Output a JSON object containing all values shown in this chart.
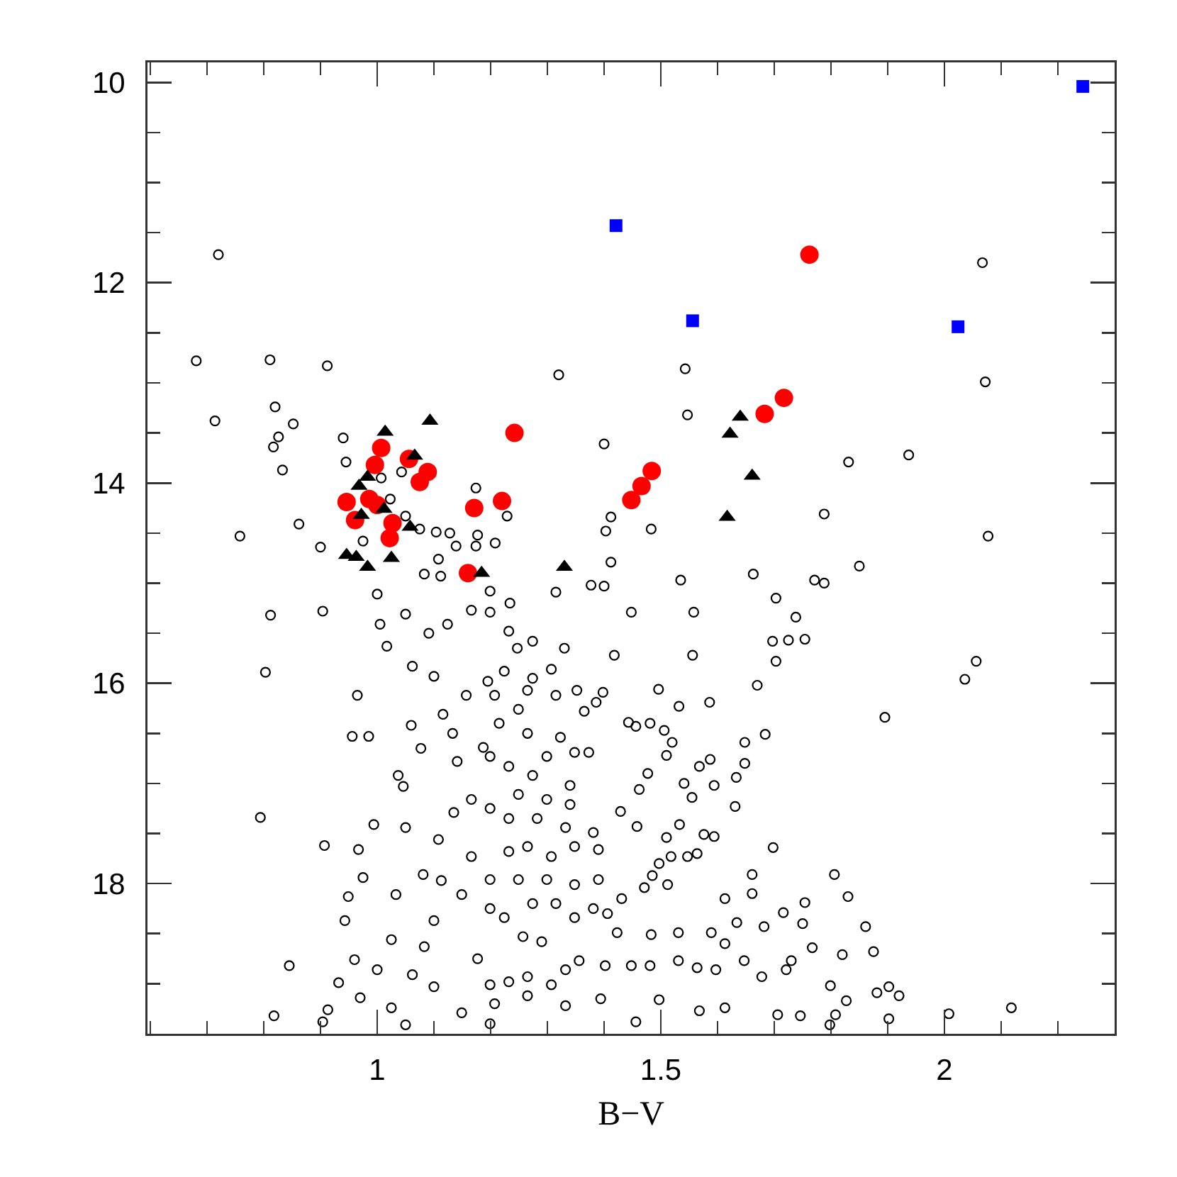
{
  "chart_data": {
    "type": "scatter",
    "xlabel": "B−V",
    "xlim": [
      0.595,
      2.3
    ],
    "ylim": [
      19.5,
      9.8
    ],
    "xticks": [
      {
        "value": 0.6,
        "label": null
      },
      {
        "value": 0.7,
        "label": null
      },
      {
        "value": 0.8,
        "label": null
      },
      {
        "value": 0.9,
        "label": null
      },
      1,
      {
        "value": 1.1,
        "label": null
      },
      {
        "value": 1.2,
        "label": null
      },
      {
        "value": 1.3,
        "label": null
      },
      {
        "value": 1.4,
        "label": null
      },
      1.5,
      {
        "value": 1.6,
        "label": null
      },
      {
        "value": 1.7,
        "label": null
      },
      {
        "value": 1.8,
        "label": null
      },
      {
        "value": 1.9,
        "label": null
      },
      2,
      {
        "value": 2.1,
        "label": null
      },
      {
        "value": 2.2,
        "label": null
      }
    ],
    "yticks": [
      10,
      {
        "value": 10.5,
        "label": null
      },
      {
        "value": 11,
        "label": null
      },
      {
        "value": 11.5,
        "label": null
      },
      12,
      {
        "value": 12.5,
        "label": null
      },
      {
        "value": 13,
        "label": null
      },
      {
        "value": 13.5,
        "label": null
      },
      14,
      {
        "value": 14.5,
        "label": null
      },
      {
        "value": 15,
        "label": null
      },
      {
        "value": 15.5,
        "label": null
      },
      16,
      {
        "value": 16.5,
        "label": null
      },
      {
        "value": 17,
        "label": null
      },
      {
        "value": 17.5,
        "label": null
      },
      18,
      {
        "value": 18.5,
        "label": null
      },
      {
        "value": 19,
        "label": null
      }
    ],
    "series": [
      {
        "marker": "circle-open",
        "color": "#000000",
        "x": [
          0.72,
          0.681,
          0.811,
          0.912,
          0.82,
          0.714,
          0.852,
          0.826,
          0.817,
          0.94,
          0.945,
          0.833,
          1.007,
          1.043,
          1.023,
          1.174,
          0.862,
          0.758,
          0.9,
          1.104,
          1.128,
          1.177,
          1.174,
          1.139,
          1.05,
          1.075,
          0.975,
          1.108,
          1.32,
          1.543,
          1.547,
          1.4,
          1.229,
          1.412,
          1.403,
          1.483,
          1.208,
          1.412,
          2.067,
          2.072,
          1.831,
          1.937,
          1.788,
          2.077,
          1.85,
          1.771,
          1.788,
          1.754,
          2.056,
          2.036,
          1.895,
          1.806,
          1.83,
          1.861,
          1.875,
          1.82,
          1.767,
          1.799,
          1.902,
          1.881,
          1.92,
          1.827,
          2.008,
          2.118,
          1.902,
          1.808,
          1.798,
          0.812,
          0.904,
          0.803,
          0.965,
          0.956,
          0.985,
          0.794,
          0.907,
          0.967,
          0.994,
          0.845,
          0.932,
          0.818,
          0.904,
          0.913,
          0.949,
          0.943,
          0.96,
          0.97,
          0.975,
          1.0,
          1.005,
          1.017,
          1.037,
          1.046,
          1.06,
          1.077,
          1.083,
          1.112,
          1.124,
          1.091,
          1.1,
          1.116,
          1.141,
          1.135,
          1.166,
          1.108,
          1.081,
          1.113,
          1.149,
          1.1,
          1.025,
          1.177,
          1.062,
          1.1,
          1.025,
          1.05,
          1.149,
          1.199,
          1.157,
          1.187,
          1.195,
          1.166,
          1.199,
          1.535,
          1.663,
          1.703,
          1.738,
          1.697,
          1.725,
          1.703,
          1.67,
          1.684,
          1.648,
          1.648,
          1.633,
          1.631,
          1.698,
          1.661,
          1.556,
          1.558,
          1.448,
          1.418,
          1.586,
          1.587,
          1.594,
          1.555,
          1.541,
          1.496,
          1.532,
          1.594,
          1.533,
          1.754,
          1.75,
          1.73,
          1.716,
          1.682,
          1.661,
          1.613,
          1.746,
          1.706,
          1.613,
          1.568,
          1.497,
          1.394,
          1.332,
          1.265,
          1.207,
          1.456,
          1.352,
          1.33,
          1.274,
          1.234,
          1.377,
          1.4,
          1.315,
          1.247,
          1.307,
          1.398,
          1.386,
          1.365,
          1.443,
          1.456,
          1.481,
          1.506,
          1.52,
          1.51,
          1.568,
          1.462,
          1.477,
          1.429,
          1.458,
          1.51,
          1.576,
          1.564,
          1.547,
          1.518,
          1.497,
          1.485,
          1.512,
          1.471,
          1.431,
          1.406,
          1.381,
          1.423,
          1.483,
          1.531,
          1.589,
          1.634,
          1.613,
          1.647,
          1.678,
          1.721,
          1.597,
          1.564,
          1.531,
          1.481,
          1.448,
          1.402,
          1.356,
          1.332,
          1.307,
          1.265,
          1.232,
          1.199,
          1.29,
          1.257,
          1.224,
          1.199,
          1.274,
          1.315,
          1.348,
          1.39,
          1.348,
          1.299,
          1.249,
          1.199,
          1.232,
          1.265,
          1.307,
          1.348,
          1.39,
          1.332,
          1.381,
          1.282,
          1.232,
          1.199,
          1.249,
          1.299,
          1.34,
          1.34,
          1.274,
          1.232,
          1.199,
          1.299,
          1.348,
          1.373,
          1.323,
          1.265,
          1.215,
          1.249,
          1.207,
          1.265,
          1.315,
          1.224,
          1.274,
          1.199,
          1.232,
          1.05,
          1.062,
          1.133,
          1.033,
          1.0,
          1.083,
          1.166,
          1.05
        ],
        "values": [
          11.72,
          12.78,
          12.77,
          12.83,
          13.24,
          13.38,
          13.41,
          13.54,
          13.64,
          13.55,
          13.79,
          13.87,
          13.95,
          13.89,
          14.16,
          14.05,
          14.41,
          14.53,
          14.64,
          14.49,
          14.5,
          14.52,
          14.63,
          14.63,
          14.33,
          14.46,
          14.58,
          14.76,
          12.92,
          12.86,
          13.32,
          13.61,
          14.33,
          14.34,
          14.48,
          14.46,
          14.6,
          14.79,
          11.8,
          12.99,
          13.79,
          13.72,
          14.31,
          14.53,
          14.83,
          14.97,
          15.0,
          15.56,
          15.78,
          15.96,
          16.34,
          17.91,
          18.13,
          18.43,
          18.68,
          18.71,
          18.64,
          19.02,
          19.03,
          19.09,
          19.12,
          19.17,
          19.3,
          19.24,
          19.35,
          19.31,
          19.41,
          15.32,
          15.28,
          15.89,
          16.12,
          16.53,
          16.53,
          17.34,
          17.62,
          17.66,
          17.41,
          18.82,
          18.99,
          19.32,
          19.38,
          19.26,
          18.13,
          18.37,
          18.76,
          19.14,
          17.94,
          15.11,
          15.41,
          15.63,
          16.92,
          17.03,
          16.42,
          16.65,
          14.91,
          14.93,
          15.41,
          15.5,
          15.93,
          16.31,
          16.78,
          17.29,
          17.16,
          17.56,
          17.91,
          17.97,
          18.11,
          18.37,
          18.56,
          18.75,
          18.91,
          19.03,
          19.24,
          19.41,
          19.29,
          19.4,
          16.12,
          16.64,
          15.98,
          15.27,
          15.08,
          14.97,
          14.91,
          15.15,
          15.34,
          15.58,
          15.57,
          15.78,
          16.02,
          16.51,
          16.59,
          16.8,
          16.94,
          17.23,
          17.64,
          17.91,
          15.72,
          15.29,
          15.29,
          15.72,
          16.19,
          16.76,
          17.02,
          17.14,
          17.0,
          16.06,
          16.23,
          17.53,
          17.41,
          18.19,
          18.4,
          18.77,
          18.29,
          18.43,
          18.1,
          18.15,
          19.32,
          19.31,
          19.24,
          19.27,
          19.16,
          19.15,
          19.22,
          19.12,
          19.2,
          19.38,
          16.07,
          15.65,
          15.58,
          15.2,
          15.02,
          15.03,
          15.09,
          15.65,
          15.86,
          16.09,
          16.19,
          16.28,
          16.39,
          16.43,
          16.4,
          16.47,
          16.59,
          16.72,
          16.83,
          17.06,
          16.9,
          17.28,
          17.43,
          17.54,
          17.51,
          17.7,
          17.73,
          17.73,
          17.8,
          17.92,
          18.01,
          18.04,
          18.15,
          18.3,
          18.25,
          18.49,
          18.51,
          18.49,
          18.49,
          18.39,
          18.6,
          18.77,
          18.93,
          18.86,
          18.86,
          18.84,
          18.77,
          18.82,
          18.82,
          18.82,
          18.77,
          18.86,
          19.01,
          18.93,
          18.98,
          19.01,
          18.58,
          18.53,
          18.34,
          18.25,
          18.2,
          18.2,
          18.34,
          17.96,
          18.01,
          17.96,
          17.96,
          17.96,
          17.68,
          17.63,
          17.73,
          17.63,
          17.66,
          17.44,
          17.49,
          17.35,
          17.35,
          17.25,
          17.11,
          17.16,
          17.21,
          17.02,
          16.92,
          16.83,
          16.73,
          16.73,
          16.69,
          16.69,
          16.54,
          16.5,
          16.4,
          16.26,
          16.12,
          16.07,
          16.12,
          15.88,
          15.95,
          15.29,
          15.48,
          15.31,
          15.83,
          16.5,
          18.11,
          18.86,
          18.63,
          17.73,
          17.44
        ]
      },
      {
        "marker": "circle",
        "color": "#ff0000",
        "x": [
          1.762,
          1.717,
          1.683,
          1.242,
          1.484,
          1.466,
          1.448,
          1.22,
          1.007,
          0.996,
          1.056,
          1.089,
          1.075,
          0.946,
          0.986,
          1.0,
          0.961,
          1.027,
          1.022,
          1.171,
          1.16
        ],
        "values": [
          11.72,
          13.15,
          13.31,
          13.5,
          13.88,
          14.03,
          14.17,
          14.18,
          13.65,
          13.82,
          13.76,
          13.89,
          13.99,
          14.19,
          14.16,
          14.22,
          14.37,
          14.4,
          14.55,
          14.25,
          14.9
        ]
      },
      {
        "marker": "triangle",
        "color": "#000000",
        "x": [
          1.014,
          1.093,
          1.066,
          0.983,
          0.968,
          1.012,
          0.972,
          1.058,
          0.946,
          0.963,
          0.983,
          1.025,
          1.184,
          1.33,
          1.64,
          1.622,
          1.661,
          1.617
        ],
        "values": [
          13.49,
          13.38,
          13.73,
          13.94,
          14.03,
          14.26,
          14.32,
          14.44,
          14.72,
          14.74,
          14.84,
          14.75,
          14.9,
          14.84,
          13.34,
          13.51,
          13.93,
          14.34
        ]
      },
      {
        "marker": "square",
        "color": "#0000ff",
        "x": [
          1.421,
          1.556,
          2.024,
          2.244
        ],
        "values": [
          11.43,
          12.38,
          12.44,
          10.04
        ]
      }
    ]
  }
}
